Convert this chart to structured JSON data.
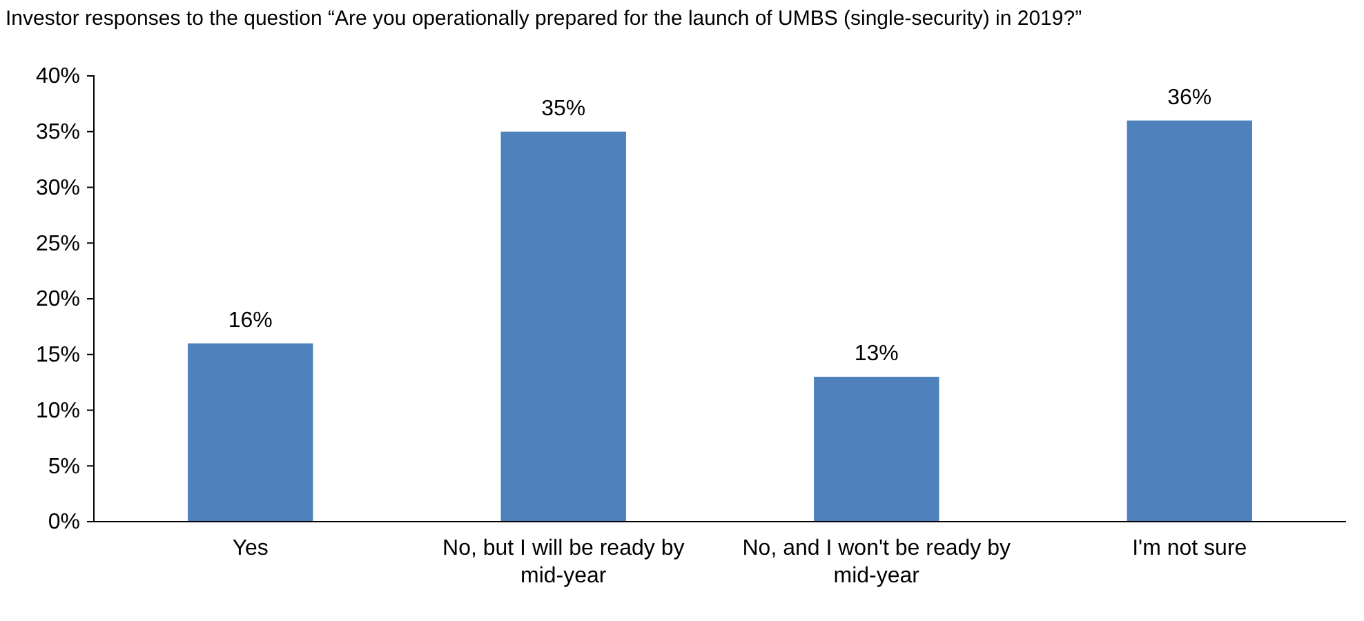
{
  "chart_data": {
    "type": "bar",
    "title": "Investor responses to the question “Are you operationally prepared for the launch of UMBS (single-security) in 2019?”",
    "categories": [
      "Yes",
      "No, but I will be ready by mid-year",
      "No, and I won't be ready by mid-year",
      "I'm not sure"
    ],
    "values": [
      16,
      35,
      13,
      36
    ],
    "color": "#4f81bd",
    "ylim": [
      0,
      40
    ],
    "yticks": [
      {
        "value": 0,
        "label": "0%"
      },
      {
        "value": 5,
        "label": "5%"
      },
      {
        "value": 10,
        "label": "10%"
      },
      {
        "value": 15,
        "label": "15%"
      },
      {
        "value": 20,
        "label": "20%"
      },
      {
        "value": 25,
        "label": "25%"
      },
      {
        "value": 30,
        "label": "30%"
      },
      {
        "value": 35,
        "label": "35%"
      },
      {
        "value": 40,
        "label": "40%"
      }
    ],
    "value_labels": [
      "16%",
      "35%",
      "13%",
      "36%"
    ],
    "grid": false
  }
}
